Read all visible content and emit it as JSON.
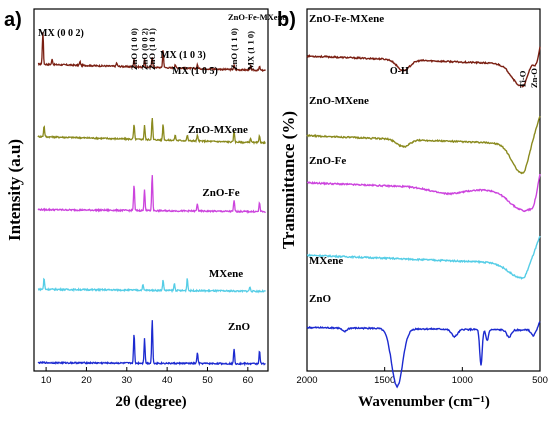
{
  "chart_data": [
    {
      "panel": "a)",
      "type": "line",
      "xlabel": "2θ (degree)",
      "ylabel": "Intensity (a.u)",
      "xlim": [
        7,
        65
      ],
      "xticks": [
        10,
        20,
        30,
        40,
        50,
        60
      ],
      "series": [
        {
          "name": "ZnO-Fe-MXene",
          "color": "#7a1f12",
          "offset": 0.83,
          "baseline": 0.03,
          "peaks": [
            [
              9.2,
              0.09
            ],
            [
              11.5,
              0.015
            ],
            [
              18.4,
              0.01
            ],
            [
              27.5,
              0.01
            ],
            [
              31.8,
              0.02
            ],
            [
              34.4,
              0.02
            ],
            [
              36.3,
              0.03
            ],
            [
              39.0,
              0.05
            ],
            [
              42.0,
              0.01
            ],
            [
              47.5,
              0.01
            ],
            [
              56.6,
              0.012
            ],
            [
              60.7,
              0.01
            ],
            [
              62.9,
              0.01
            ]
          ]
        },
        {
          "name": "ZnO-MXene",
          "color": "#8a8a1e",
          "offset": 0.63,
          "baseline": 0.03,
          "peaks": [
            [
              9.5,
              0.03
            ],
            [
              31.8,
              0.04
            ],
            [
              34.4,
              0.04
            ],
            [
              36.3,
              0.06
            ],
            [
              39.0,
              0.045
            ],
            [
              42.0,
              0.015
            ],
            [
              45.0,
              0.015
            ],
            [
              47.5,
              0.015
            ],
            [
              56.6,
              0.03
            ],
            [
              60.7,
              0.012
            ],
            [
              62.9,
              0.02
            ]
          ]
        },
        {
          "name": "ZnO-Fe",
          "color": "#cc44dd",
          "offset": 0.44,
          "baseline": 0.01,
          "peaks": [
            [
              31.8,
              0.07
            ],
            [
              34.4,
              0.06
            ],
            [
              36.3,
              0.1
            ],
            [
              47.5,
              0.02
            ],
            [
              56.6,
              0.03
            ],
            [
              62.9,
              0.025
            ]
          ]
        },
        {
          "name": "MXene",
          "color": "#55cde6",
          "offset": 0.22,
          "baseline": 0.01,
          "peaks": [
            [
              9.5,
              0.03
            ],
            [
              34.0,
              0.015
            ],
            [
              39.0,
              0.03
            ],
            [
              41.8,
              0.02
            ],
            [
              45.0,
              0.035
            ],
            [
              60.5,
              0.012
            ]
          ]
        },
        {
          "name": "ZnO",
          "color": "#1c2ad0",
          "offset": 0.02,
          "baseline": 0.005,
          "peaks": [
            [
              31.8,
              0.08
            ],
            [
              34.4,
              0.07
            ],
            [
              36.3,
              0.12
            ],
            [
              47.5,
              0.03
            ],
            [
              56.6,
              0.04
            ],
            [
              62.9,
              0.035
            ]
          ]
        }
      ],
      "annotations": [
        {
          "text": "MX (0 0 2)",
          "x": 9.2
        },
        {
          "text": "ZnO (1 0 0)",
          "x": 31.8
        },
        {
          "text": "ZnO (0 0 2)",
          "x": 34.4
        },
        {
          "text": "ZnO (1 0 1)",
          "x": 36.3
        },
        {
          "text": "MX (1 0 3)",
          "x": 41.5
        },
        {
          "text": "MX (1 0 5)",
          "x": 45.0
        },
        {
          "text": "ZnO (1 1 0)",
          "x": 56.6
        },
        {
          "text": "MX (1 1 0)",
          "x": 60.7
        }
      ]
    },
    {
      "panel": "b)",
      "type": "line",
      "xlabel": "Wavenumber (cm⁻¹)",
      "ylabel": "Transmittance (%)",
      "xlim": [
        2000,
        500
      ],
      "xticks": [
        2000,
        1500,
        1000,
        500
      ],
      "series": [
        {
          "name": "ZnO-Fe-MXene",
          "color": "#7a1f12",
          "offset": 0.87,
          "baseline": 0.1,
          "dips": [
            [
              1380,
              0.03,
              40
            ],
            [
              620,
              0.06,
              60
            ],
            [
              520,
              0.05,
              20
            ]
          ]
        },
        {
          "name": "ZnO-MXene",
          "color": "#8a8a1e",
          "offset": 0.65,
          "baseline": 0.1,
          "dips": [
            [
              1380,
              0.02,
              40
            ],
            [
              620,
              0.08,
              60
            ]
          ]
        },
        {
          "name": "ZnO-Fe",
          "color": "#cc44dd",
          "offset": 0.52,
          "baseline": 0.1,
          "dips": [
            [
              1100,
              0.015,
              100
            ],
            [
              620,
              0.05,
              80
            ],
            [
              540,
              0.06,
              30
            ]
          ]
        },
        {
          "name": "MXene",
          "color": "#55cde6",
          "offset": 0.32,
          "baseline": 0.1,
          "dips": [
            [
              620,
              0.04,
              80
            ]
          ]
        },
        {
          "name": "ZnO",
          "color": "#1c2ad0",
          "offset": 0.12,
          "baseline": 0.03,
          "dips": [
            [
              1760,
              0.01,
              15
            ],
            [
              1420,
              0.16,
              35
            ],
            [
              1050,
              0.02,
              20
            ],
            [
              880,
              0.1,
              8
            ],
            [
              840,
              0.03,
              8
            ],
            [
              700,
              0.02,
              15
            ],
            [
              540,
              0.03,
              20
            ]
          ]
        }
      ],
      "annotations": [
        {
          "text": "O-H",
          "x": 1380
        },
        {
          "text": "Ti-O",
          "x": 610
        },
        {
          "text": "Zn-O",
          "x": 540
        }
      ]
    }
  ]
}
